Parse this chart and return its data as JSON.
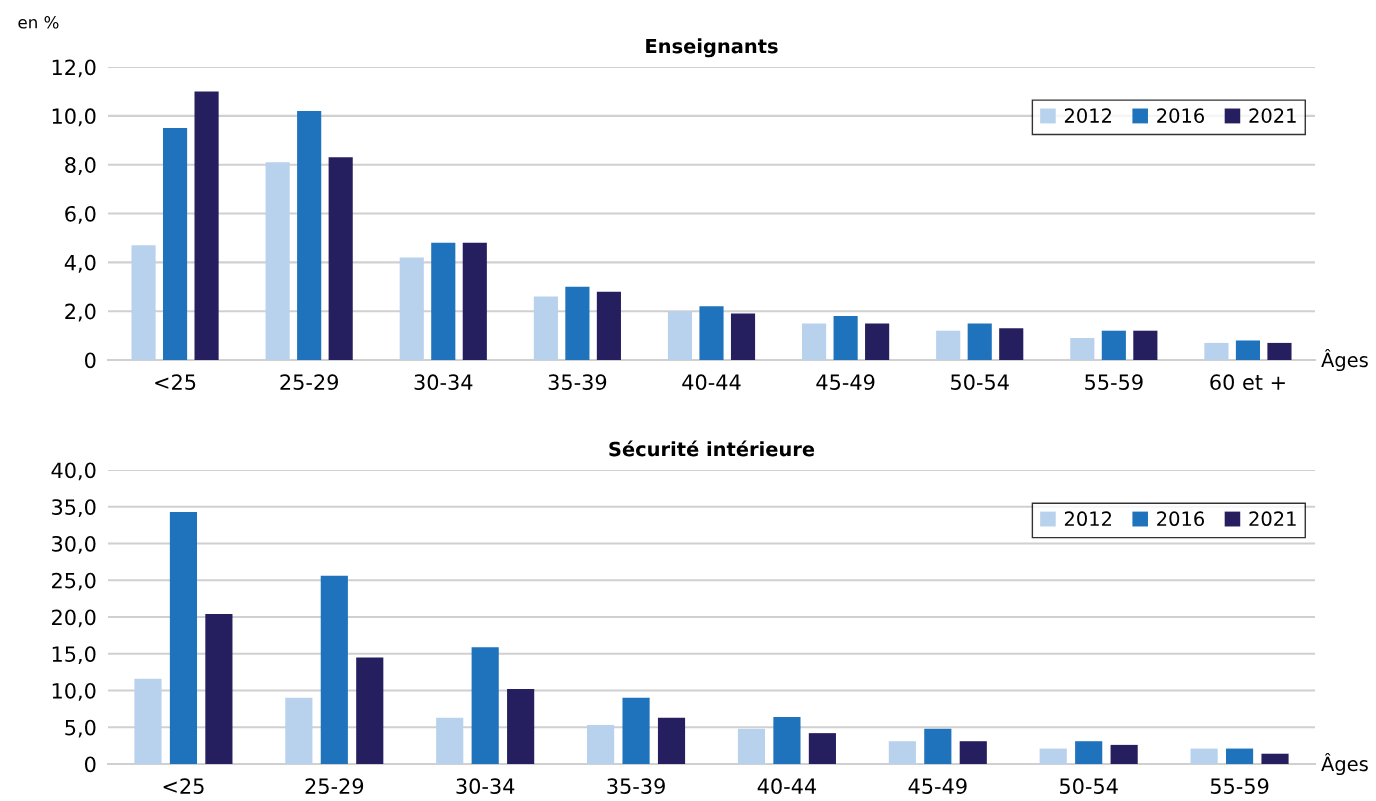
{
  "chart_data": [
    {
      "type": "bar",
      "title": "Enseignants",
      "ylabel": "en %",
      "xlabel": "Âges",
      "categories": [
        "<25",
        "25-29",
        "30-34",
        "35-39",
        "40-44",
        "45-49",
        "50-54",
        "55-59",
        "60 et +"
      ],
      "series": [
        {
          "name": "2012",
          "color": "#b8d1ec",
          "values": [
            4.7,
            8.1,
            4.2,
            2.6,
            2.0,
            1.5,
            1.2,
            0.9,
            0.7
          ]
        },
        {
          "name": "2016",
          "color": "#1e73bc",
          "values": [
            9.5,
            10.2,
            4.8,
            3.0,
            2.2,
            1.8,
            1.5,
            1.2,
            0.8
          ]
        },
        {
          "name": "2021",
          "color": "#261f5f",
          "values": [
            11.0,
            8.3,
            4.8,
            2.8,
            1.9,
            1.5,
            1.3,
            1.2,
            0.7
          ]
        }
      ],
      "ylim": [
        0,
        12
      ],
      "yticks": [
        0,
        {
          "value": 2,
          "label": "2,0"
        },
        {
          "value": 4,
          "label": "4,0"
        },
        {
          "value": 6,
          "label": "6,0"
        },
        {
          "value": 8,
          "label": "8,0"
        },
        {
          "value": 10,
          "label": "10,0"
        },
        {
          "value": 12,
          "label": "12,0"
        }
      ],
      "grid": "y",
      "legend": "top right"
    },
    {
      "type": "bar",
      "title": "Sécurité intérieure",
      "xlabel": "Âges",
      "categories": [
        "<25",
        "25-29",
        "30-34",
        "35-39",
        "40-44",
        "45-49",
        "50-54",
        "55-59"
      ],
      "series": [
        {
          "name": "2012",
          "color": "#b8d1ec",
          "values": [
            11.6,
            9.0,
            6.3,
            5.3,
            4.8,
            3.1,
            2.1,
            2.1
          ]
        },
        {
          "name": "2016",
          "color": "#1e73bc",
          "values": [
            34.3,
            25.6,
            15.9,
            9.0,
            6.4,
            4.8,
            3.1,
            2.1
          ]
        },
        {
          "name": "2021",
          "color": "#261f5f",
          "values": [
            20.4,
            14.5,
            10.2,
            6.3,
            4.2,
            3.1,
            2.6,
            1.4
          ]
        }
      ],
      "ylim": [
        0,
        40
      ],
      "yticks": [
        0,
        {
          "value": 5,
          "label": "5,0"
        },
        {
          "value": 10,
          "label": "10,0"
        },
        {
          "value": 15,
          "label": "15,0"
        },
        {
          "value": 20,
          "label": "20,0"
        },
        {
          "value": 25,
          "label": "25,0"
        },
        {
          "value": 30,
          "label": "30,0"
        },
        {
          "value": 35,
          "label": "35,0"
        },
        {
          "value": 40,
          "label": "40,0"
        }
      ],
      "grid": "y",
      "legend": "top right"
    }
  ]
}
